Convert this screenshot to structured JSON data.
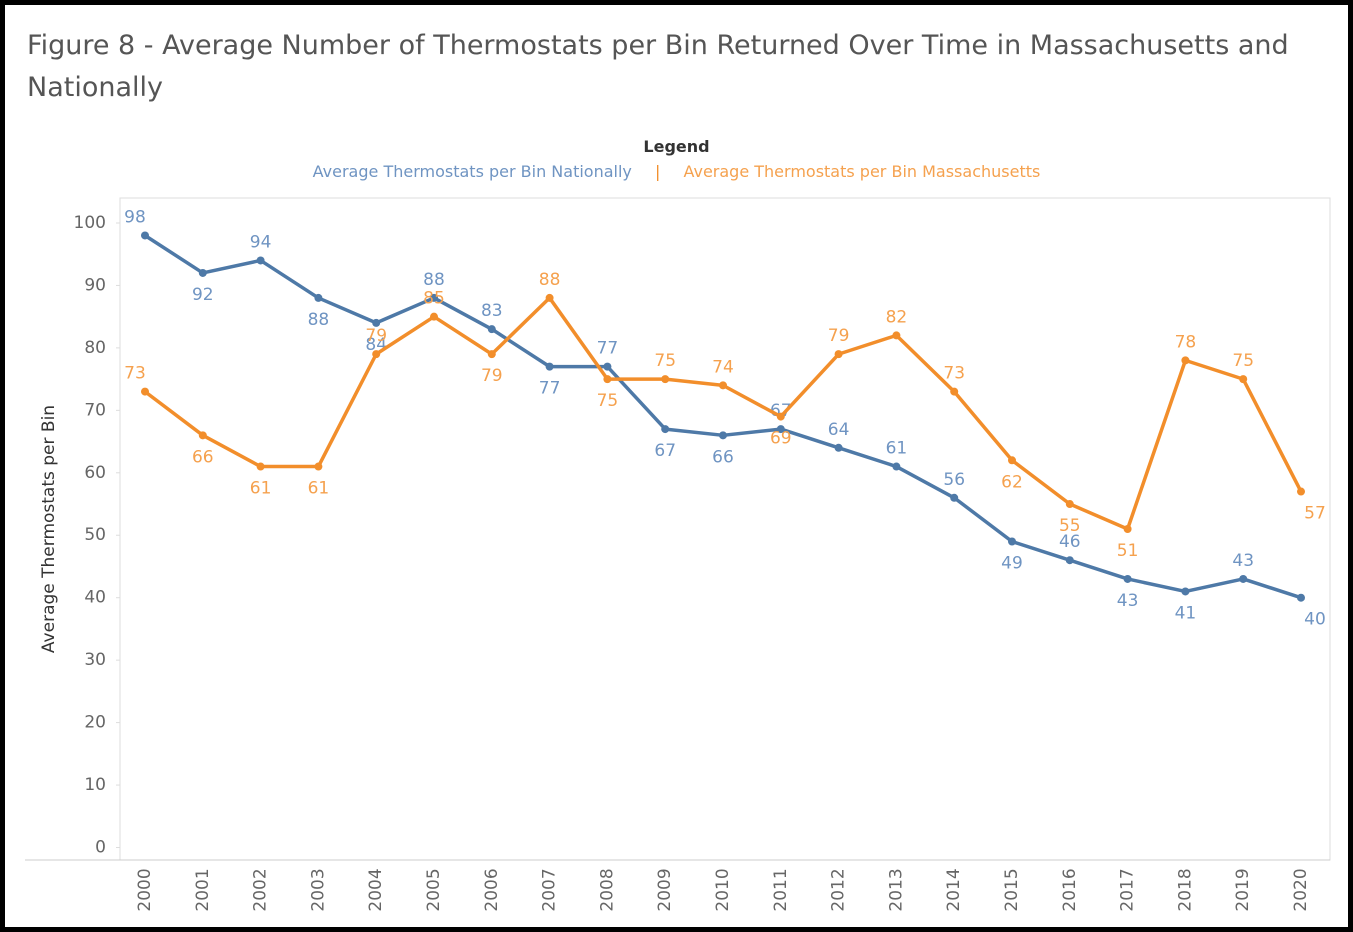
{
  "chart_data": {
    "type": "line",
    "title": "Figure 8 - Average Number of Thermostats per Bin Returned Over Time in Massachusetts and Nationally",
    "legend_title": "Legend",
    "legend_position": "top",
    "y_label": "Average Thermostats per Bin",
    "categories": [
      "2000",
      "2001",
      "2002",
      "2003",
      "2004",
      "2005",
      "2006",
      "2007",
      "2008",
      "2009",
      "2010",
      "2011",
      "2012",
      "2013",
      "2014",
      "2015",
      "2016",
      "2017",
      "2018",
      "2019",
      "2020"
    ],
    "series": [
      {
        "name": "Average Thermostats per Bin Nationally",
        "color": "#4e79a7",
        "label_color": "#6f94c2",
        "values": [
          98,
          92,
          94,
          88,
          84,
          88,
          83,
          77,
          77,
          67,
          66,
          67,
          64,
          61,
          56,
          49,
          46,
          43,
          41,
          43,
          40
        ]
      },
      {
        "name": "Average Thermostats per Bin Massachusetts",
        "color": "#f28e2b",
        "label_color": "#f5a14e",
        "values": [
          73,
          66,
          61,
          61,
          79,
          85,
          79,
          88,
          75,
          75,
          74,
          69,
          79,
          82,
          73,
          62,
          55,
          51,
          78,
          75,
          57
        ]
      }
    ],
    "ylim": [
      -2,
      104
    ],
    "yticks": [
      0,
      10,
      20,
      30,
      40,
      50,
      60,
      70,
      80,
      90,
      100
    ],
    "grid": false
  }
}
